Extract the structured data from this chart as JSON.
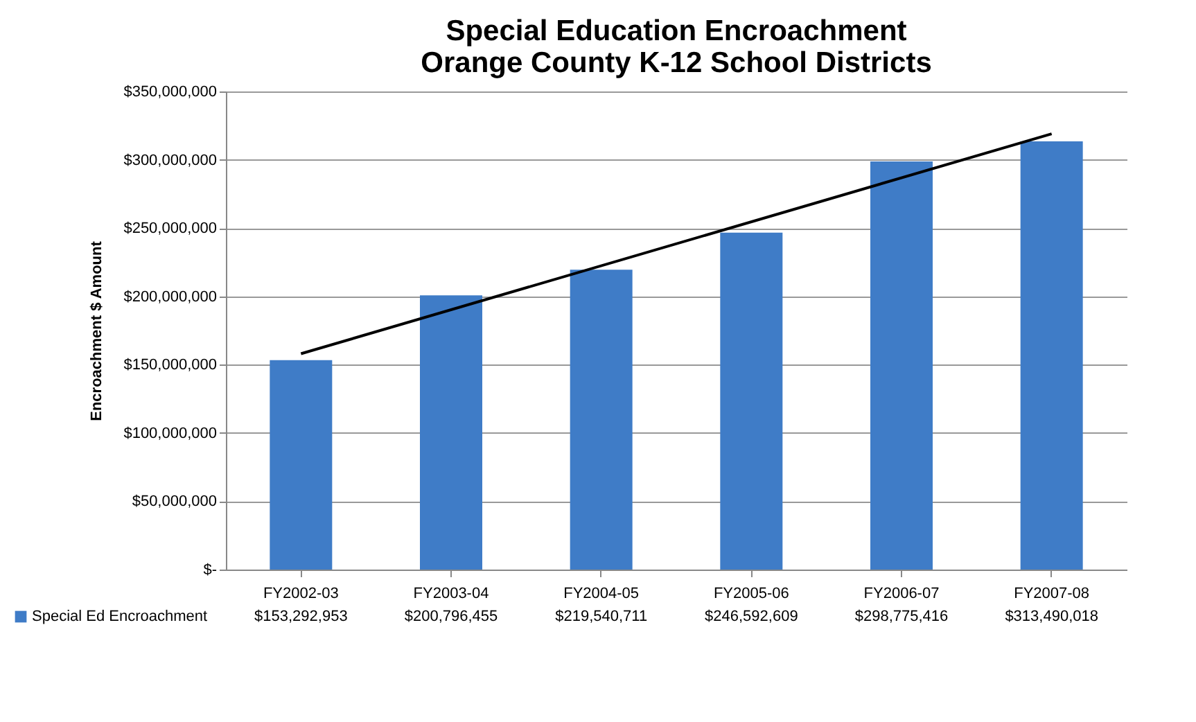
{
  "chart_data": {
    "type": "bar",
    "title": "Special Education Encroachment\nOrange County K-12 School Districts",
    "ylabel": "Encroachment  $ Amount",
    "categories": [
      "FY2002-03",
      "FY2003-04",
      "FY2004-05",
      "FY2005-06",
      "FY2006-07",
      "FY2007-08"
    ],
    "series": [
      {
        "name": "Special Ed Encroachment",
        "color": "#3f7cc7",
        "values": [
          153292953,
          200796455,
          219540711,
          246592609,
          298775416,
          313490018
        ],
        "value_labels": [
          "$153,292,953",
          "$200,796,455",
          "$219,540,711",
          "$246,592,609",
          "$298,775,416",
          "$313,490,018"
        ]
      },
      {
        "type": "line",
        "color": "#000000",
        "x": [
          "FY2002-03",
          "FY2007-08"
        ],
        "values": [
          158000000,
          319000000
        ]
      }
    ],
    "ylim": [
      0,
      350000000
    ],
    "yticks": [
      {
        "value": 0,
        "label": "$-"
      },
      {
        "value": 50000000,
        "label": "$50,000,000"
      },
      {
        "value": 100000000,
        "label": "$100,000,000"
      },
      {
        "value": 150000000,
        "label": "$150,000,000"
      },
      {
        "value": 200000000,
        "label": "$200,000,000"
      },
      {
        "value": 250000000,
        "label": "$250,000,000"
      },
      {
        "value": 300000000,
        "label": "$300,000,000"
      },
      {
        "value": 350000000,
        "label": "$350,000,000"
      }
    ],
    "grid": "y",
    "legend": "bottom left"
  }
}
